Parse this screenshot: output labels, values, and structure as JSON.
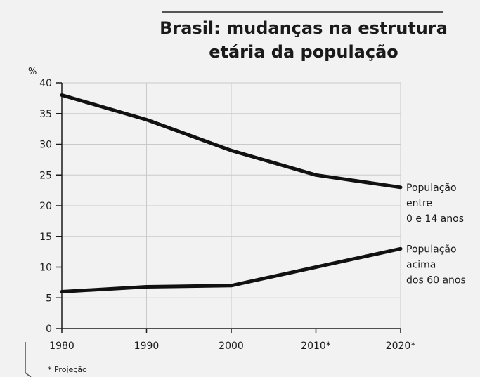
{
  "chart_data": {
    "type": "line",
    "title_lines": [
      "Brasil: mudanças na estrutura",
      "etária da população"
    ],
    "ylabel": "%",
    "x": [
      "1980",
      "1990",
      "2000",
      "2010*",
      "2020*"
    ],
    "ylim": [
      0,
      40
    ],
    "yticks": [
      0,
      5,
      10,
      15,
      20,
      25,
      30,
      35,
      40
    ],
    "grid": true,
    "series": [
      {
        "label_lines": [
          "População",
          "entre",
          "0 e 14 anos"
        ],
        "values": [
          38,
          34,
          29,
          25,
          23
        ]
      },
      {
        "label_lines": [
          "População",
          "acima",
          "dos 60 anos"
        ],
        "values": [
          6,
          6.8,
          7,
          10,
          13
        ]
      }
    ],
    "footnote": "* Projeção"
  },
  "colors": {
    "line": "#111111",
    "grid": "#c9c9c9",
    "background": "#f2f2f2"
  }
}
